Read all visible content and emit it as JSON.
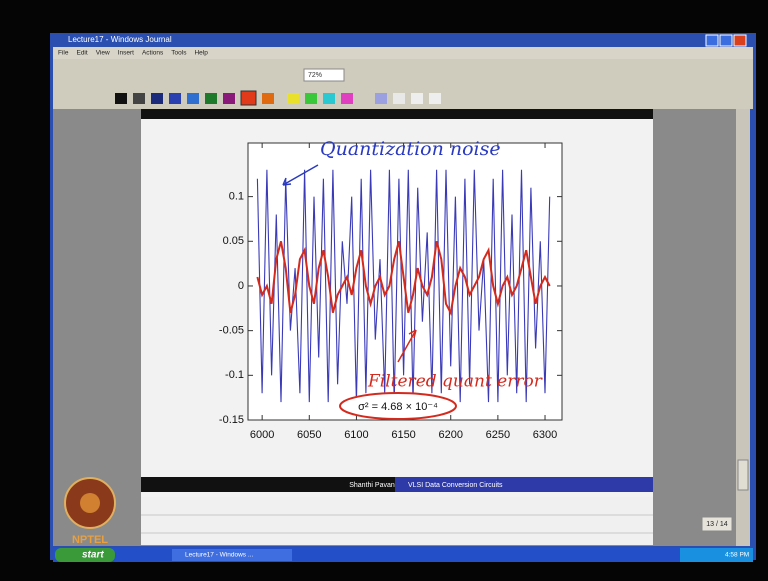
{
  "window": {
    "title": "Lecture17 - Windows Journal",
    "menu": [
      "File",
      "Edit",
      "View",
      "Insert",
      "Actions",
      "Tools",
      "Help"
    ],
    "zoom": "72%"
  },
  "slide": {
    "author": "Shanthi Pavan",
    "course": "VLSI Data Conversion Circuits"
  },
  "page_indicator": "13 / 14",
  "logo": "NPTEL",
  "taskbar": {
    "start": "start",
    "task": "Lecture17 - Windows ...",
    "clock": "4:58 PM"
  },
  "chart_data": {
    "type": "line",
    "annotations": [
      "Quantization noise",
      "Filtered quant error",
      "σ² = 4.68 × 10⁻⁴"
    ],
    "x": [
      5995,
      6000,
      6005,
      6010,
      6015,
      6020,
      6025,
      6030,
      6035,
      6040,
      6045,
      6050,
      6055,
      6060,
      6065,
      6070,
      6075,
      6080,
      6085,
      6090,
      6095,
      6100,
      6105,
      6110,
      6115,
      6120,
      6125,
      6130,
      6135,
      6140,
      6145,
      6150,
      6155,
      6160,
      6165,
      6170,
      6175,
      6180,
      6185,
      6190,
      6195,
      6200,
      6205,
      6210,
      6215,
      6220,
      6225,
      6230,
      6235,
      6240,
      6245,
      6250,
      6255,
      6260,
      6265,
      6270,
      6275,
      6280,
      6285,
      6290,
      6295,
      6300,
      6305
    ],
    "series": [
      {
        "name": "Quantization noise",
        "color": "#3a3ab8",
        "values": [
          0.12,
          -0.12,
          0.13,
          -0.1,
          0.08,
          -0.13,
          0.12,
          -0.05,
          0.02,
          -0.12,
          0.13,
          -0.13,
          0.1,
          -0.08,
          0.12,
          -0.13,
          0.13,
          -0.11,
          0.05,
          -0.02,
          0.1,
          -0.13,
          0.12,
          -0.12,
          0.13,
          -0.06,
          0.03,
          -0.12,
          0.13,
          -0.13,
          0.12,
          -0.1,
          0.13,
          -0.13,
          0.11,
          -0.04,
          0.06,
          -0.12,
          0.13,
          -0.12,
          0.13,
          -0.09,
          0.1,
          -0.13,
          0.12,
          -0.11,
          0.13,
          -0.05,
          0.03,
          -0.13,
          0.12,
          -0.13,
          0.13,
          -0.1,
          0.08,
          -0.12,
          0.13,
          -0.13,
          0.11,
          -0.07,
          0.05,
          -0.12,
          0.1
        ]
      },
      {
        "name": "Filtered quant error",
        "color": "#d42a1e",
        "values": [
          0.01,
          -0.01,
          0.0,
          -0.02,
          0.03,
          0.05,
          0.02,
          -0.03,
          -0.01,
          0.03,
          0.04,
          0.0,
          -0.02,
          0.02,
          0.04,
          0.01,
          -0.03,
          -0.01,
          0.0,
          0.01,
          -0.01,
          0.02,
          0.04,
          0.0,
          -0.02,
          0.0,
          0.01,
          -0.01,
          0.0,
          0.03,
          0.05,
          0.01,
          -0.03,
          -0.01,
          0.02,
          0.0,
          -0.01,
          0.01,
          0.05,
          0.03,
          -0.02,
          -0.03,
          0.0,
          0.02,
          0.01,
          -0.01,
          0.0,
          0.01,
          0.03,
          0.04,
          0.0,
          -0.02,
          0.0,
          0.01,
          -0.01,
          0.0,
          0.02,
          0.04,
          0.01,
          -0.02,
          0.0,
          0.01,
          0.0
        ]
      }
    ],
    "xlim": [
      5985,
      6318
    ],
    "ylim": [
      -0.15,
      0.16
    ],
    "xticks": [
      6000,
      6050,
      6100,
      6150,
      6200,
      6250,
      6300
    ],
    "yticks": [
      0.1,
      0.05,
      0,
      -0.05,
      -0.1,
      -0.15
    ]
  }
}
